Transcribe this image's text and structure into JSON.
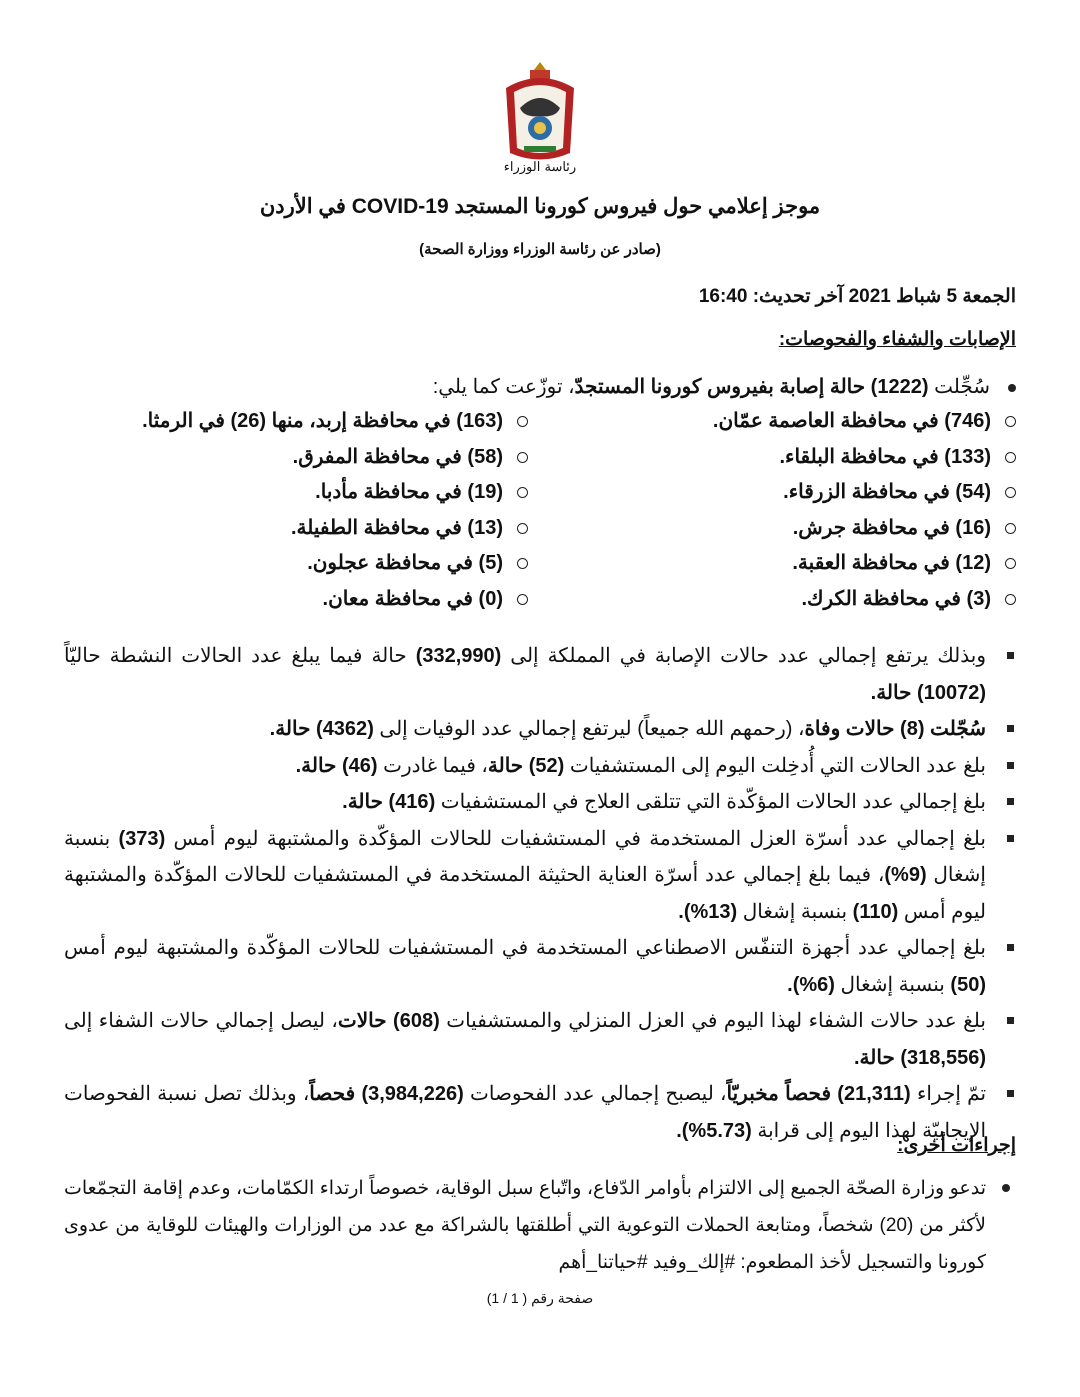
{
  "header": {
    "emblem_caption": "رئاسة الوزراء",
    "title": "موجز إعلامي حول فيروس كورونا المستجد COVID-19 في الأردن",
    "subtitle": "(صادر عن رئاسة الوزراء ووزارة الصحة)",
    "date_line": "الجمعة 5 شباط 2021 آخر تحديث: 16:40"
  },
  "section1": {
    "heading": "الإصابات والشفاء والفحوصات:",
    "lead": [
      {
        "t": "سُجِّلت "
      },
      {
        "t": "(1222) حالة إصابة بفيروس كورونا المستجدّ",
        "b": true
      },
      {
        "t": "، توزّعت كما يلي:"
      }
    ],
    "governorates_right": [
      "(746) في محافظة العاصمة عمّان.",
      "(133) في محافظة البلقاء.",
      "(54) في محافظة الزرقاء.",
      "(16) في محافظة جرش.",
      "(12) في محافظة العقبة.",
      "(3) في محافظة الكرك."
    ],
    "governorates_left": [
      "(163) في محافظة إربد، منها (26) في الرمثا.",
      "(58) في محافظة المفرق.",
      "(19) في محافظة مأدبا.",
      "(13) في محافظة الطفيلة.",
      "(5) في محافظة عجلون.",
      "(0) في محافظة معان."
    ],
    "bullets": [
      [
        {
          "t": "وبذلك يرتفع إجمالي عدد حالات الإصابة في المملكة إلى "
        },
        {
          "t": "(332,990)",
          "b": true
        },
        {
          "t": " حالة فيما يبلغ عدد الحالات النشطة حاليّاً "
        },
        {
          "t": "(10072) حالة.",
          "b": true
        }
      ],
      [
        {
          "t": "سُجّلت (8) حالات وفاة",
          "b": true
        },
        {
          "t": "، (رحمهم الله جميعاً) ليرتفع إجمالي عدد الوفيات إلى "
        },
        {
          "t": "(4362) حالة.",
          "b": true
        }
      ],
      [
        {
          "t": "بلغ عدد الحالات التي أُدخِلت اليوم إلى المستشفيات "
        },
        {
          "t": "(52) حالة",
          "b": true
        },
        {
          "t": "، فيما غادرت "
        },
        {
          "t": "(46) حالة.",
          "b": true
        }
      ],
      [
        {
          "t": "بلغ إجمالي عدد الحالات المؤكّدة التي تتلقى العلاج في المستشفيات "
        },
        {
          "t": "(416) حالة.",
          "b": true
        }
      ],
      [
        {
          "t": "بلغ إجمالي عدد أسرّة العزل المستخدمة في المستشفيات للحالات المؤكّدة والمشتبهة ليوم أمس "
        },
        {
          "t": "(373)",
          "b": true
        },
        {
          "t": " بنسبة إشغال "
        },
        {
          "t": "(9%)",
          "b": true
        },
        {
          "t": "، فيما بلغ إجمالي عدد أسرّة العناية الحثيثة المستخدمة في المستشفيات للحالات المؤكّدة والمشتبهة ليوم أمس "
        },
        {
          "t": "(110)",
          "b": true
        },
        {
          "t": " بنسبة إشغال "
        },
        {
          "t": "(13%).",
          "b": true
        }
      ],
      [
        {
          "t": "بلغ إجمالي عدد أجهزة التنفّس الاصطناعي المستخدمة في المستشفيات للحالات المؤكّدة والمشتبهة ليوم أمس "
        },
        {
          "t": "(50)",
          "b": true
        },
        {
          "t": " بنسبة إشغال "
        },
        {
          "t": "(6%).",
          "b": true
        }
      ],
      [
        {
          "t": "بلغ عدد حالات الشفاء لهذا اليوم في العزل المنزلي والمستشفيات "
        },
        {
          "t": "(608) حالات",
          "b": true
        },
        {
          "t": "، ليصل إجمالي حالات الشفاء إلى "
        },
        {
          "t": "(318,556) حالة.",
          "b": true
        }
      ],
      [
        {
          "t": "تمّ إجراء "
        },
        {
          "t": "(21,311) فحصاً مخبريّاً",
          "b": true
        },
        {
          "t": "، ليصبح إجمالي عدد الفحوصات "
        },
        {
          "t": "(3,984,226) فحصاً",
          "b": true
        },
        {
          "t": "، وبذلك تصل نسبة الفحوصات الإيجابيّة لهذا اليوم إلى قرابة "
        },
        {
          "t": "(5.73%).",
          "b": true
        }
      ]
    ]
  },
  "section2": {
    "heading": "إجراءات أخرى:",
    "text": "تدعو وزارة الصحّة الجميع إلى الالتزام بأوامر الدّفاع، واتّباع سبل الوقاية، خصوصاً ارتداء الكمّامات، وعدم إقامة التجمّعات لأكثر من (20) شخصاً، ومتابعة الحملات التوعوية التي أطلقتها بالشراكة مع عدد من الوزارات والهيئات للوقاية من عدوى كورونا والتسجيل لأخذ المطعوم: #إلك_وفيد #حياتنا_أهم"
  },
  "footer": {
    "page_label": "صفحة رقم ( 1 / 1)"
  }
}
